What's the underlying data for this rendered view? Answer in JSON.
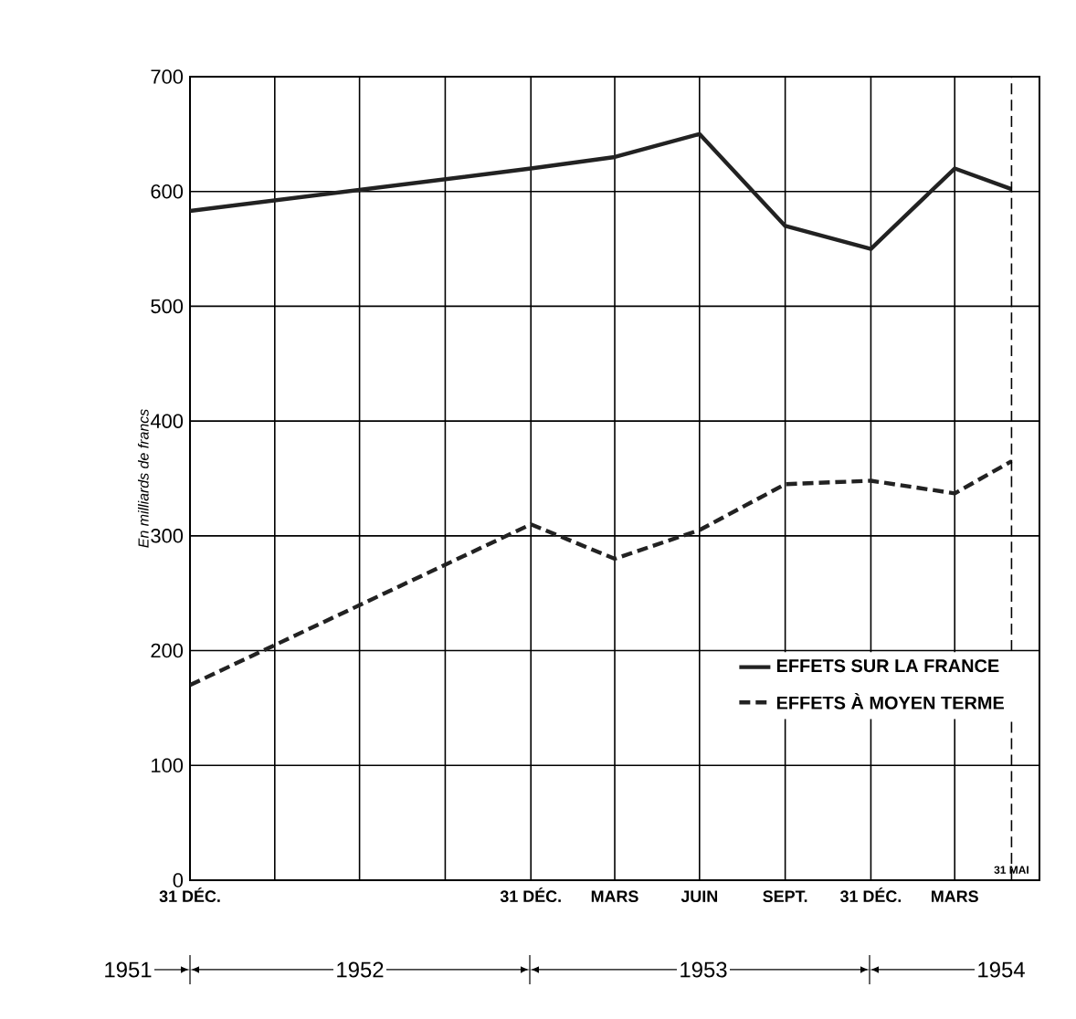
{
  "chart_data": {
    "type": "line",
    "ylabel": "En milliards de francs",
    "x": [
      "1951-12-31",
      "1952-12-31",
      "1953-03-31",
      "1953-06-30",
      "1953-09-30",
      "1953-12-31",
      "1954-03-31",
      "1954-05-31"
    ],
    "series": [
      {
        "name": "EFFETS SUR LA FRANCE",
        "color": "#222222",
        "line_style": "solid",
        "values": [
          583,
          620,
          630,
          650,
          570,
          550,
          620,
          602
        ]
      },
      {
        "name": "EFFETS À MOYEN TERME",
        "color": "#222222",
        "line_style": "dashed",
        "values": [
          170,
          310,
          280,
          305,
          345,
          348,
          337,
          365
        ]
      }
    ],
    "xlim": [
      "1951-12-31",
      "1954-06-30"
    ],
    "xticks": [
      {
        "value": "1951-12-31",
        "label": "31 DÉC."
      },
      {
        "value": "1952-03-31",
        "label": null
      },
      {
        "value": "1952-06-30",
        "label": null
      },
      {
        "value": "1952-09-30",
        "label": null
      },
      {
        "value": "1952-12-31",
        "label": "31 DÉC."
      },
      {
        "value": "1953-03-31",
        "label": "MARS"
      },
      {
        "value": "1953-06-30",
        "label": "JUIN"
      },
      {
        "value": "1953-09-30",
        "label": "SEPT."
      },
      {
        "value": "1953-12-31",
        "label": "31 DÉC."
      },
      {
        "value": "1954-03-31",
        "label": "MARS"
      },
      {
        "value": "1954-06-30",
        "label": null
      }
    ],
    "ylim": [
      0,
      700
    ],
    "yticks": [
      0,
      100,
      200,
      300,
      400,
      500,
      600,
      700
    ],
    "ref_lines": [
      {
        "axis": "x",
        "value": "1954-05-31",
        "label": "31 MAI",
        "line_style": "dashed"
      }
    ],
    "annotations": [
      "1951",
      "1952",
      "1953",
      "1954"
    ],
    "grid": true,
    "legend": "bottom right",
    "marker": "none"
  }
}
